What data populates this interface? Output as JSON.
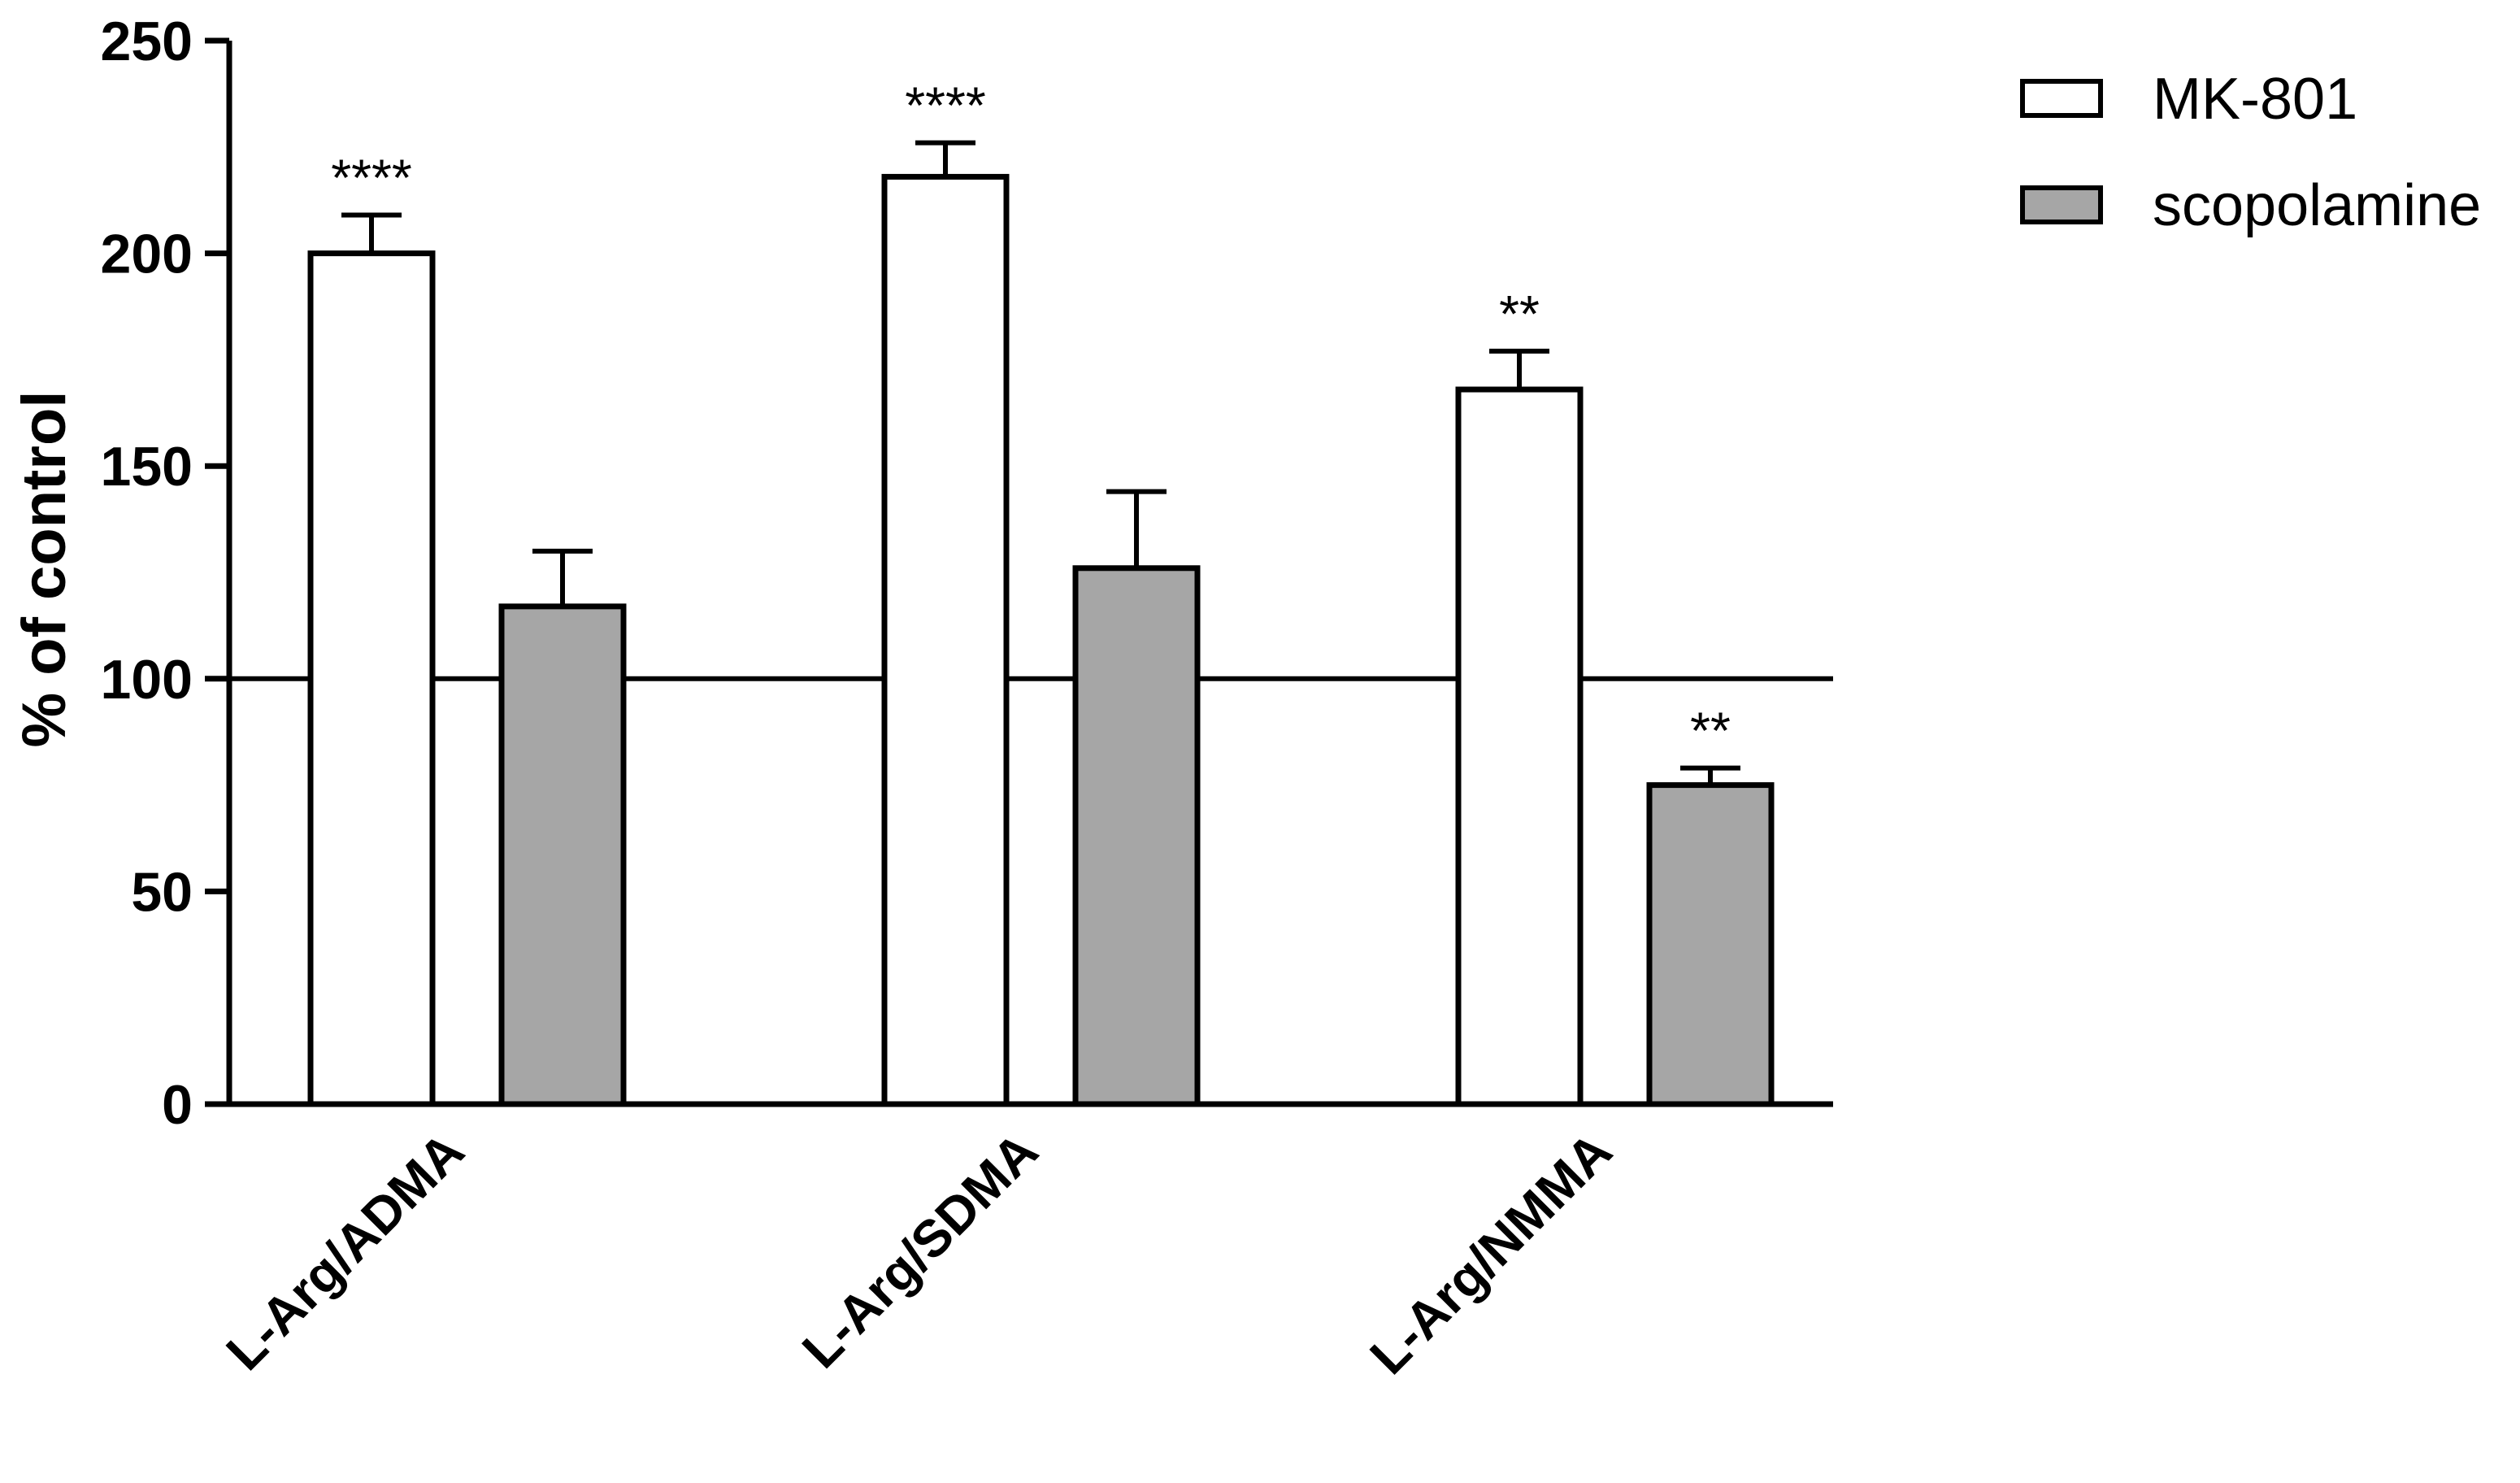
{
  "chart_data": {
    "type": "bar",
    "title": "",
    "xlabel": "",
    "ylabel": "% of control",
    "ylim": [
      0,
      250
    ],
    "yticks": [
      0,
      50,
      100,
      150,
      200,
      250
    ],
    "reference_line": 100,
    "categories": [
      "L-Arg/ADMA",
      "L-Arg/SDMA",
      "L-Arg/NMMA"
    ],
    "series": [
      {
        "name": "MK-801",
        "color": "#ffffff",
        "values": [
          200,
          218,
          168
        ],
        "errors": [
          9,
          8,
          9
        ],
        "significance": [
          "****",
          "****",
          "**"
        ]
      },
      {
        "name": "scopolamine",
        "color": "#a6a6a6",
        "values": [
          117,
          126,
          75
        ],
        "errors": [
          13,
          18,
          4
        ],
        "significance": [
          "",
          "",
          "**"
        ]
      }
    ],
    "legend_position": "top-right",
    "grid": false
  }
}
